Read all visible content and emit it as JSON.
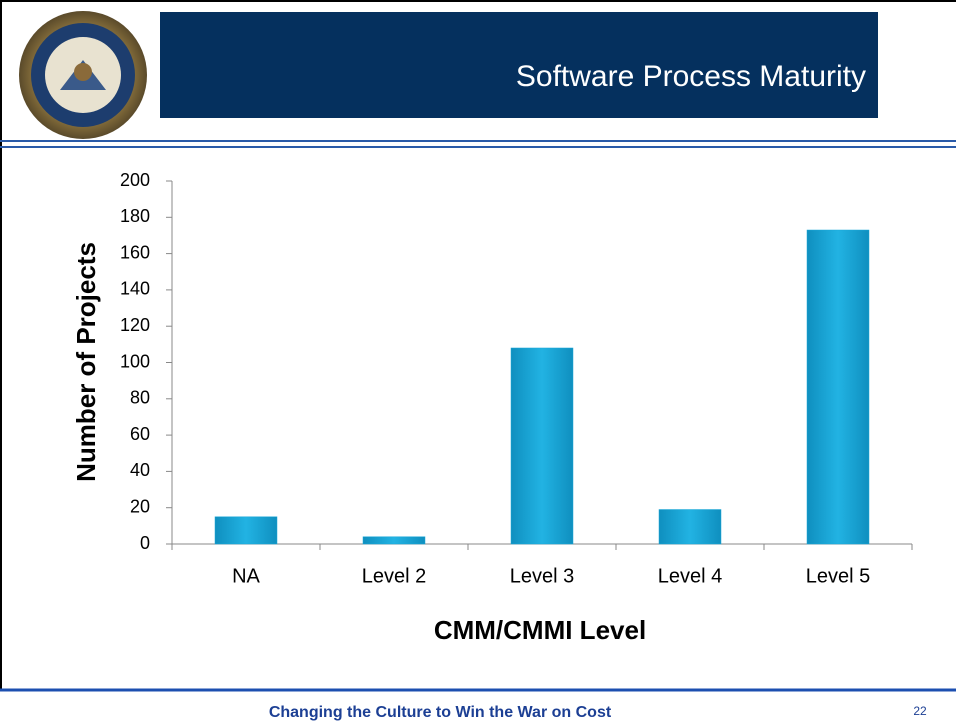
{
  "header": {
    "title": "Software Process Maturity"
  },
  "footer": {
    "text": "Changing the Culture to Win the War on Cost",
    "page": "22"
  },
  "chart_data": {
    "type": "bar",
    "categories": [
      "NA",
      "Level 2",
      "Level 3",
      "Level 4",
      "Level 5"
    ],
    "values": [
      15,
      4,
      108,
      19,
      173
    ],
    "color": "#1ba8d8",
    "x_label": "CMM/CMMI Level",
    "y_label": "Number of Projects",
    "ylim": [
      0,
      200
    ],
    "yticks": [
      0,
      20,
      40,
      60,
      80,
      100,
      120,
      140,
      160,
      180,
      200
    ],
    "grid": false
  }
}
